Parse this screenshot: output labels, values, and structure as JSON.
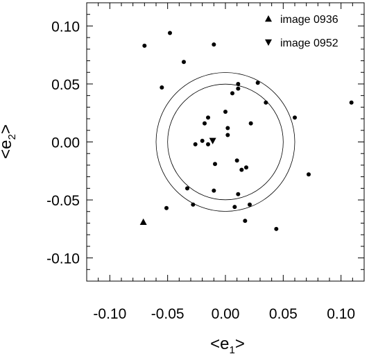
{
  "chart_data": {
    "type": "scatter",
    "xlabel": {
      "open": "<e",
      "sub": "1",
      "close": ">"
    },
    "ylabel": {
      "open": "<e",
      "sub": "2",
      "close": ">"
    },
    "xlim": [
      -0.12,
      0.12
    ],
    "ylim": [
      -0.12,
      0.12
    ],
    "x_ticks": [
      -0.1,
      -0.05,
      0.0,
      0.05,
      0.1
    ],
    "y_ticks": [
      -0.1,
      -0.05,
      0.0,
      0.05,
      0.1
    ],
    "x_tick_labels": [
      "-0.10",
      "-0.05",
      "0.00",
      "0.05",
      "0.10"
    ],
    "y_tick_labels": [
      "-0.10",
      "-0.05",
      "0.00",
      "0.05",
      "0.10"
    ],
    "minor_tick_step": 0.01,
    "grid": false,
    "reference_circles": [
      {
        "center": [
          0,
          0
        ],
        "radius": 0.05
      },
      {
        "center": [
          0,
          0
        ],
        "radius": 0.06
      }
    ],
    "points": [
      {
        "x": -0.048,
        "y": 0.094
      },
      {
        "x": -0.07,
        "y": 0.083
      },
      {
        "x": -0.01,
        "y": 0.084
      },
      {
        "x": -0.036,
        "y": 0.069
      },
      {
        "x": -0.055,
        "y": 0.047
      },
      {
        "x": 0.011,
        "y": 0.05
      },
      {
        "x": 0.028,
        "y": 0.051
      },
      {
        "x": 0.011,
        "y": 0.046
      },
      {
        "x": 0.006,
        "y": 0.042
      },
      {
        "x": 0.035,
        "y": 0.034
      },
      {
        "x": 0.109,
        "y": 0.034
      },
      {
        "x": 0.0,
        "y": 0.026
      },
      {
        "x": -0.015,
        "y": 0.021
      },
      {
        "x": 0.06,
        "y": 0.021
      },
      {
        "x": -0.018,
        "y": 0.016
      },
      {
        "x": 0.022,
        "y": 0.016
      },
      {
        "x": 0.002,
        "y": 0.012
      },
      {
        "x": 0.002,
        "y": 0.006
      },
      {
        "x": -0.02,
        "y": 0.001
      },
      {
        "x": -0.026,
        "y": -0.002
      },
      {
        "x": -0.015,
        "y": -0.002
      },
      {
        "x": 0.01,
        "y": -0.016
      },
      {
        "x": -0.009,
        "y": -0.019
      },
      {
        "x": 0.018,
        "y": -0.022
      },
      {
        "x": 0.014,
        "y": -0.024
      },
      {
        "x": 0.072,
        "y": -0.028
      },
      {
        "x": -0.033,
        "y": -0.04
      },
      {
        "x": -0.01,
        "y": -0.042
      },
      {
        "x": 0.011,
        "y": -0.045
      },
      {
        "x": -0.028,
        "y": -0.054
      },
      {
        "x": 0.021,
        "y": -0.054
      },
      {
        "x": -0.051,
        "y": -0.057
      },
      {
        "x": 0.008,
        "y": -0.056
      },
      {
        "x": 0.017,
        "y": -0.068
      },
      {
        "x": 0.044,
        "y": -0.075
      }
    ],
    "highlight_points": [
      {
        "x": -0.071,
        "y": -0.069,
        "marker": "triangle-up"
      },
      {
        "x": -0.011,
        "y": 0.001,
        "marker": "triangle-down"
      }
    ],
    "legend": {
      "placement": "top-right",
      "entries": [
        {
          "marker": "triangle-up",
          "label": "image 0936"
        },
        {
          "marker": "triangle-down",
          "label": "image 0952"
        }
      ]
    },
    "colors": {
      "marker": "#000000",
      "axes": "#000000",
      "background": "#ffffff"
    }
  }
}
